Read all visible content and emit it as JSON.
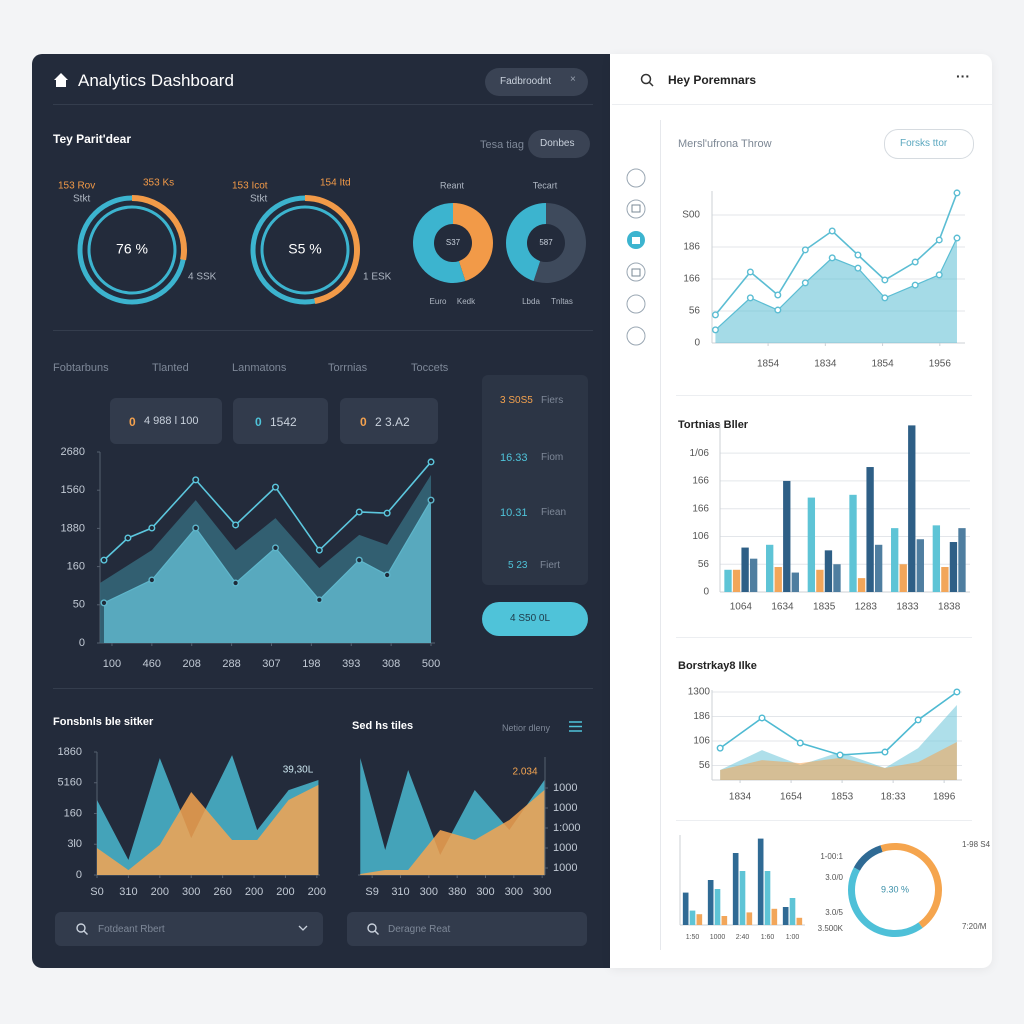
{
  "header": {
    "title": "Analytics Dashboard",
    "button": "Fadbroodnt"
  },
  "overview": {
    "title": "Tey Parit'dear",
    "tabs": [
      "Tesa tiag",
      "Donbes"
    ]
  },
  "main_tabs": [
    "Fobtarbuns",
    "Tlanted",
    "Lanmatons",
    "Torrnias",
    "Toccets"
  ],
  "stat_boxes": [
    {
      "icon": "0",
      "text": "4 988 l 100"
    },
    {
      "icon": "0",
      "text": "1542"
    },
    {
      "icon": "0",
      "text": "2 3.A2"
    }
  ],
  "side_stats": [
    {
      "value": "3 S0S5",
      "label": "Fiers"
    },
    {
      "value": "16.33",
      "label": "Fiom"
    },
    {
      "value": "10.31",
      "label": "Fiean"
    },
    {
      "value": "5 23",
      "label": "Fiert"
    }
  ],
  "action_button": "4 S50 0L",
  "search_boxes": [
    "Fotdeant Rbert",
    "Deragne Reat"
  ],
  "right_header": {
    "title": "Hey Poremnars",
    "button": "Forsks ttor"
  },
  "chart_data": [
    {
      "type": "gauge",
      "values": [
        28
      ],
      "color": "#f29a48",
      "track_color": "#3cb4cf",
      "center_label": "76 %",
      "annotations": [
        "153 Rov",
        "353 Ks",
        "Stkt",
        "4 SSK"
      ]
    },
    {
      "type": "gauge",
      "values": [
        47
      ],
      "color": "#f29a48",
      "track_color": "#3cb4cf",
      "center_label": "S5 %",
      "annotations": [
        "153 Icot",
        "154 Itd",
        "Stkt",
        "1 ESK"
      ]
    },
    {
      "type": "pie",
      "title": "Reant",
      "values": [
        45,
        55
      ],
      "colors": [
        "#f29a48",
        "#3cb4cf"
      ],
      "center_label": "S37",
      "annotations": [
        "Euro",
        "Kedk"
      ]
    },
    {
      "type": "pie",
      "title": "Tecart",
      "values": [
        55,
        45
      ],
      "colors": [
        "#3e4a5c",
        "#3cb4cf"
      ],
      "center_label": "587",
      "annotations": [
        "Lbda",
        "Tnltas"
      ]
    },
    {
      "type": "xy",
      "xlim": [
        -0.3,
        8.1
      ],
      "ylim": [
        0,
        5
      ],
      "grid": false,
      "xticks": [
        {
          "value": 0,
          "label": "100"
        },
        {
          "value": 1,
          "label": "460"
        },
        {
          "value": 2,
          "label": "208"
        },
        {
          "value": 3,
          "label": "288"
        },
        {
          "value": 4,
          "label": "307"
        },
        {
          "value": 5,
          "label": "198"
        },
        {
          "value": 6,
          "label": "393"
        },
        {
          "value": 7,
          "label": "308"
        },
        {
          "value": 8,
          "label": "500"
        }
      ],
      "yticks": [
        0,
        {
          "value": 1,
          "label": "50"
        },
        {
          "value": 2,
          "label": "160"
        },
        {
          "value": 3,
          "label": "1880"
        },
        {
          "value": 4,
          "label": "1560"
        },
        {
          "value": 5,
          "label": "2680"
        }
      ],
      "series": [
        {
          "type": "area",
          "color": "#35687b",
          "markers": false,
          "x": [
            -0.3,
            1.0,
            2.1,
            3.1,
            4.1,
            5.2,
            6.2,
            6.9,
            8.0
          ],
          "values": [
            1.57,
            2.43,
            3.74,
            2.43,
            3.27,
            1.96,
            2.83,
            2.57,
            4.4
          ]
        },
        {
          "type": "area",
          "color": "#5fb6cb",
          "markers": true,
          "x": [
            -0.2,
            1.0,
            2.1,
            3.1,
            4.1,
            5.2,
            6.2,
            6.9,
            8.0
          ],
          "values": [
            1.05,
            1.65,
            3.01,
            1.57,
            2.49,
            1.13,
            2.17,
            1.78,
            3.74
          ]
        },
        {
          "type": "line",
          "color": "#5cc7de",
          "markers": true,
          "x": [
            -0.2,
            0.4,
            1.0,
            2.1,
            3.1,
            4.1,
            5.2,
            6.2,
            6.9,
            8.0
          ],
          "values": [
            2.17,
            2.75,
            3.01,
            4.27,
            3.09,
            4.08,
            2.43,
            3.43,
            3.4,
            4.74
          ]
        }
      ]
    },
    {
      "type": "xy",
      "title": "Fonsbnls ble sitker",
      "annotation": "39,30L",
      "xlim": [
        0,
        7.1
      ],
      "ylim": [
        0,
        4
      ],
      "grid": false,
      "xticks": [
        {
          "value": 0,
          "label": "S0"
        },
        {
          "value": 1,
          "label": "310"
        },
        {
          "value": 2,
          "label": "200"
        },
        {
          "value": 3,
          "label": "300"
        },
        {
          "value": 4,
          "label": "260"
        },
        {
          "value": 5,
          "label": "200"
        },
        {
          "value": 6,
          "label": "200"
        },
        {
          "value": 7,
          "label": "200"
        }
      ],
      "yticks": [
        0,
        {
          "value": 1,
          "label": "3l0"
        },
        {
          "value": 2,
          "label": "160"
        },
        {
          "value": 3,
          "label": "5160"
        },
        {
          "value": 4,
          "label": "1860"
        }
      ],
      "series": [
        {
          "type": "area",
          "color": "#4ab8d0",
          "markers": false,
          "x": [
            0,
            1,
            2,
            3,
            4.3,
            5.1,
            6.1,
            7.05
          ],
          "values": [
            2.44,
            0.49,
            3.8,
            1.2,
            3.9,
            1.46,
            2.76,
            3.09
          ]
        },
        {
          "type": "area",
          "color": "#f5a551",
          "markers": false,
          "x": [
            0,
            1,
            2,
            3,
            4.3,
            5.1,
            6.1,
            7.05
          ],
          "values": [
            0.88,
            0.16,
            0.98,
            2.7,
            1.14,
            1.14,
            2.44,
            2.93
          ]
        }
      ]
    },
    {
      "type": "xy",
      "title": "Sed hs tiles",
      "subtitle": "Netior dleny",
      "annotation": "2.034",
      "xlim": [
        -0.5,
        6.1
      ],
      "ylim": [
        0.65,
        6.55
      ],
      "grid": false,
      "y_side": "right",
      "xticks": [
        {
          "value": 0,
          "label": "S9"
        },
        {
          "value": 1,
          "label": "310"
        },
        {
          "value": 2,
          "label": "300"
        },
        {
          "value": 3,
          "label": "380"
        },
        {
          "value": 4,
          "label": "300"
        },
        {
          "value": 5,
          "label": "300"
        },
        {
          "value": 6,
          "label": "300"
        }
      ],
      "yticks": [
        {
          "value": 1,
          "label": "1000"
        },
        {
          "value": 2,
          "label": "1000"
        },
        {
          "value": 3,
          "label": "1:000"
        },
        {
          "value": 4,
          "label": "1000"
        },
        {
          "value": 5,
          "label": "1000"
        }
      ],
      "series": [
        {
          "type": "area",
          "color": "#4ab8d0",
          "markers": false,
          "x": [
            -0.42,
            0.46,
            1.27,
            2.4,
            3.62,
            4.84,
            6.08
          ],
          "values": [
            6.5,
            1.9,
            5.9,
            1.65,
            4.9,
            2.9,
            5.4
          ]
        },
        {
          "type": "area",
          "color": "#f5a551",
          "markers": false,
          "x": [
            -0.42,
            0.46,
            1.27,
            2.4,
            3.62,
            4.84,
            6.08
          ],
          "values": [
            0.7,
            0.9,
            0.9,
            2.9,
            2.4,
            3.4,
            4.9
          ]
        }
      ]
    },
    {
      "type": "xy",
      "title": "Mersl'ufrona Throw",
      "xlim": [
        -0.98,
        3.44
      ],
      "ylim": [
        0,
        4.75
      ],
      "grid": true,
      "xticks": [
        {
          "value": 0,
          "label": "1854"
        },
        {
          "value": 1,
          "label": "1834"
        },
        {
          "value": 2,
          "label": "1854"
        },
        {
          "value": 3,
          "label": "1956"
        }
      ],
      "yticks": [
        0,
        {
          "value": 1,
          "label": "56"
        },
        {
          "value": 2,
          "label": "166"
        },
        {
          "value": 3,
          "label": "186"
        },
        {
          "value": 4,
          "label": "S00"
        }
      ],
      "series": [
        {
          "type": "area",
          "color": "#5bbdd3",
          "markers": true,
          "x": [
            -0.92,
            -0.31,
            0.17,
            0.65,
            1.12,
            1.57,
            2.04,
            2.57,
            2.99,
            3.3
          ],
          "values": [
            0.41,
            1.41,
            1.03,
            1.88,
            2.66,
            2.34,
            1.41,
            1.81,
            2.13,
            3.28
          ]
        },
        {
          "type": "line",
          "color": "#5bbdd3",
          "markers": true,
          "x": [
            -0.92,
            -0.31,
            0.17,
            0.65,
            1.12,
            1.57,
            2.04,
            2.57,
            2.99,
            3.3
          ],
          "values": [
            0.88,
            2.22,
            1.5,
            2.91,
            3.5,
            2.75,
            1.97,
            2.53,
            3.22,
            4.69
          ]
        }
      ]
    },
    {
      "type": "bar",
      "title": "Tortnias Bller",
      "ylim": [
        0,
        6.05
      ],
      "grid": true,
      "categories": [
        "1064",
        "1634",
        "1835",
        "1283",
        "1833",
        "1838"
      ],
      "yticks": [
        0,
        {
          "value": 1,
          "label": "56"
        },
        {
          "value": 2,
          "label": "106"
        },
        {
          "value": 3,
          "label": "166"
        },
        {
          "value": 4,
          "label": "166"
        },
        {
          "value": 5,
          "label": "1/06"
        }
      ],
      "series": [
        {
          "color": "#5ec4d6",
          "values": [
            0.8,
            1.7,
            3.4,
            3.5,
            2.3,
            2.4
          ]
        },
        {
          "color": "#f2a65a",
          "values": [
            0.8,
            0.9,
            0.8,
            0.5,
            1.0,
            0.9
          ]
        },
        {
          "color": "#2e5f86",
          "values": [
            1.6,
            4.0,
            1.5,
            4.5,
            6.0,
            1.8
          ]
        },
        {
          "color": "#4f7ea0",
          "values": [
            1.2,
            0.7,
            1.0,
            1.7,
            1.9,
            2.3
          ]
        }
      ]
    },
    {
      "type": "xy",
      "title": "Borstrkay8 Ilke",
      "xlim": [
        -0.55,
        4.35
      ],
      "ylim": [
        0.41,
        4.08
      ],
      "grid": true,
      "xticks": [
        {
          "value": 0,
          "label": "1834"
        },
        {
          "value": 1,
          "label": "1654"
        },
        {
          "value": 2,
          "label": "1853"
        },
        {
          "value": 3,
          "label": "18:33"
        },
        {
          "value": 4,
          "label": "1896"
        }
      ],
      "yticks": [
        {
          "value": 1,
          "label": "56"
        },
        {
          "value": 2,
          "label": "106"
        },
        {
          "value": 3,
          "label": "186"
        },
        {
          "value": 4,
          "label": "1300"
        }
      ],
      "series": [
        {
          "type": "area",
          "color": "#6cc4d8",
          "markers": false,
          "x": [
            -0.39,
            0.43,
            1.18,
            1.96,
            2.84,
            3.49,
            4.25
          ],
          "values": [
            0.82,
            1.63,
            1.02,
            1.55,
            0.9,
            1.71,
            3.47
          ]
        },
        {
          "type": "area",
          "color": "#f5a24e",
          "markers": false,
          "x": [
            -0.39,
            0.43,
            1.18,
            1.96,
            2.84,
            3.49,
            4.25
          ],
          "values": [
            0.82,
            1.22,
            1.1,
            1.31,
            0.9,
            1.14,
            1.96
          ]
        },
        {
          "type": "line",
          "color": "#4fbad2",
          "markers": true,
          "x": [
            -0.39,
            0.43,
            1.18,
            1.96,
            2.84,
            3.49,
            4.25
          ],
          "values": [
            1.71,
            2.94,
            1.92,
            1.43,
            1.55,
            2.86,
            4.0
          ]
        }
      ]
    },
    {
      "type": "bar",
      "ylim": [
        0,
        5
      ],
      "grid": false,
      "categories": [
        "1:50",
        "1000",
        "2:40",
        "1:60",
        "1:00"
      ],
      "series": [
        {
          "color": "#2f6a94",
          "values": [
            1.8,
            2.5,
            4.0,
            4.8,
            1.0
          ]
        },
        {
          "color": "#5ec4d6",
          "values": [
            0.8,
            2.0,
            3.0,
            3.0,
            1.5
          ]
        },
        {
          "color": "#f2a65a",
          "values": [
            0.6,
            0.5,
            0.7,
            0.9,
            0.4
          ]
        }
      ]
    },
    {
      "type": "pie",
      "values": [
        12,
        45,
        43
      ],
      "colors": [
        "#2f6a94",
        "#f5a54e",
        "#4ec0d8"
      ],
      "center_label": "9.30 %",
      "annotations": [
        "1-00:1",
        "3.0/0",
        "3.0/5",
        "3.500K",
        "1-98 S4",
        "7:20/M"
      ]
    }
  ]
}
